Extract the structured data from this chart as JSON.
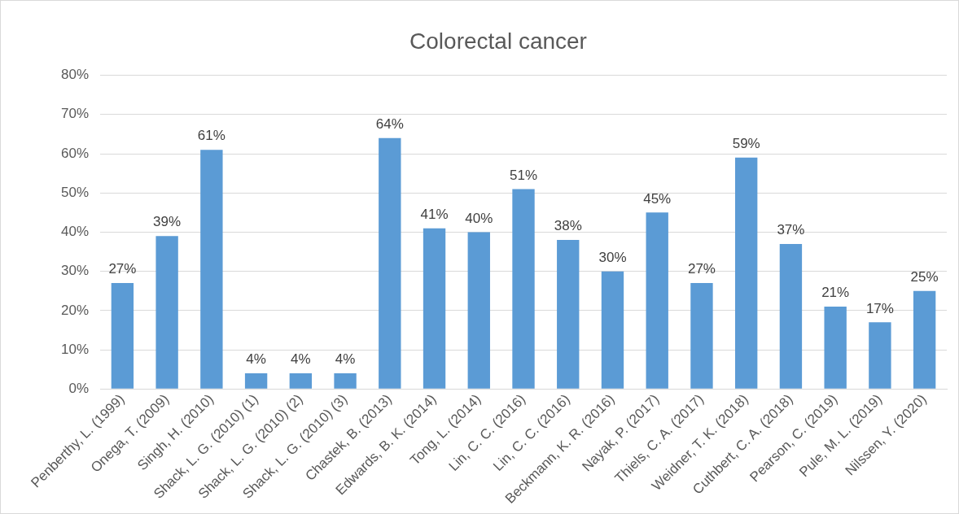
{
  "chart_data": {
    "type": "bar",
    "title": "Colorectal cancer",
    "categories": [
      "Penberthy, L. (1999)",
      "Onega, T. (2009)",
      "Singh, H. (2010)",
      "Shack, L. G. (2010) (1)",
      "Shack, L. G. (2010) (2)",
      "Shack, L. G. (2010) (3)",
      "Chastek, B. (2013)",
      "Edwards, B. K. (2014)",
      "Tong, L. (2014)",
      "Lin, C. C. (2016)",
      "Lin, C. C. (2016)",
      "Beckmann, K. R. (2016)",
      "Nayak, P. (2017)",
      "Thiels, C. A. (2017)",
      "Weidner, T. K. (2018)",
      "Cuthbert, C. A. (2018)",
      "Pearson, C. (2019)",
      "Pule, M. L. (2019)",
      "Nilssen, Y. (2020)"
    ],
    "values": [
      27,
      39,
      61,
      4,
      4,
      4,
      64,
      41,
      40,
      51,
      38,
      30,
      45,
      27,
      59,
      37,
      21,
      17,
      25
    ],
    "value_labels": [
      "27%",
      "39%",
      "61%",
      "4%",
      "4%",
      "4%",
      "64%",
      "41%",
      "40%",
      "51%",
      "38%",
      "30%",
      "45%",
      "27%",
      "59%",
      "37%",
      "21%",
      "17%",
      "25%"
    ],
    "color": "#5b9bd5",
    "ylim": [
      0,
      80
    ],
    "yticks": [
      {
        "value": 0,
        "label": "0%"
      },
      {
        "value": 10,
        "label": "10%"
      },
      {
        "value": 20,
        "label": "20%"
      },
      {
        "value": 30,
        "label": "30%"
      },
      {
        "value": 40,
        "label": "40%"
      },
      {
        "value": 50,
        "label": "50%"
      },
      {
        "value": 60,
        "label": "60%"
      },
      {
        "value": 70,
        "label": "70%"
      },
      {
        "value": 80,
        "label": "80%"
      }
    ],
    "grid": "y",
    "legend": false
  }
}
